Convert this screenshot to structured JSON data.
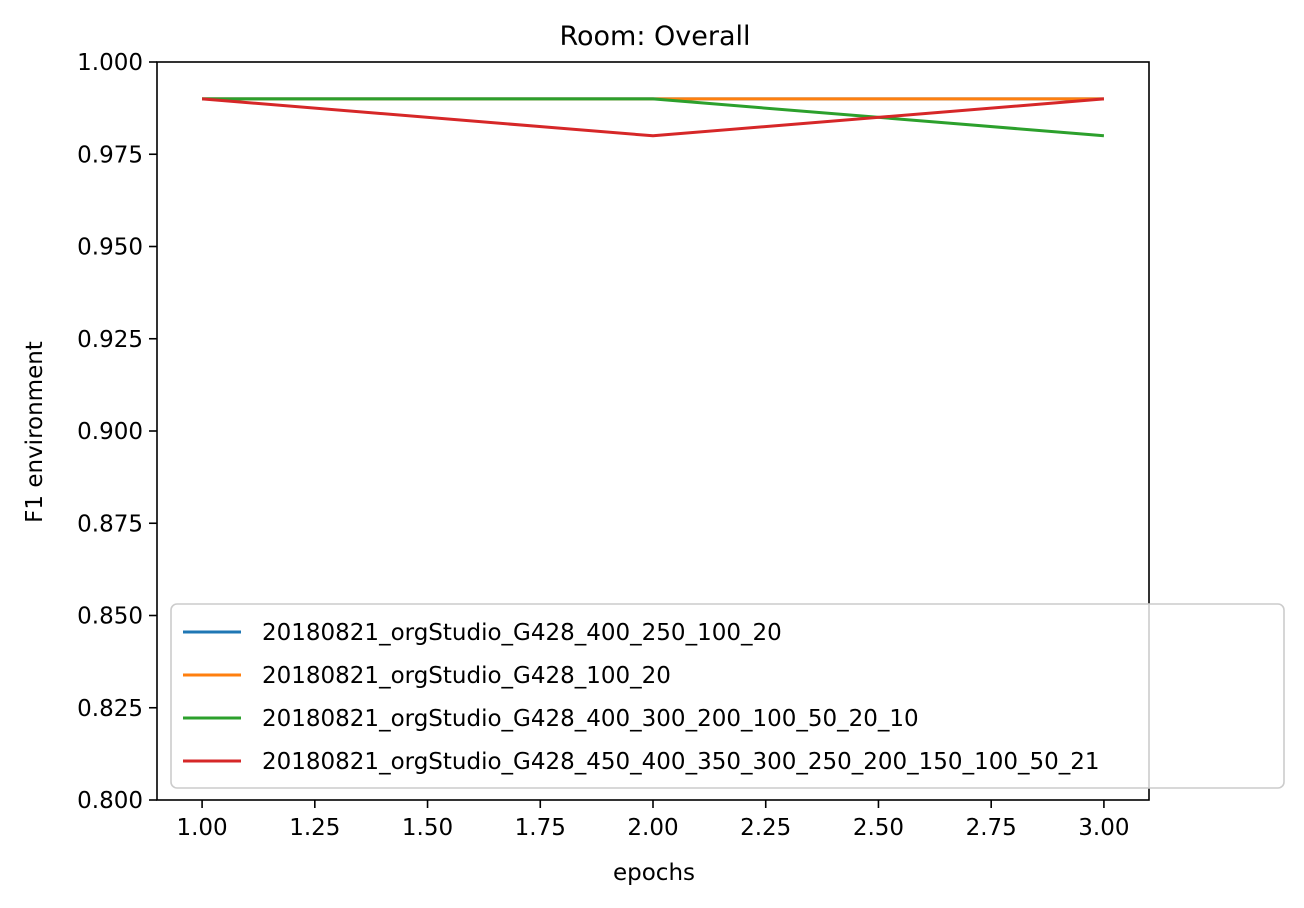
{
  "chart_data": {
    "type": "line",
    "title": "Room: Overall",
    "xlabel": "epochs",
    "ylabel": "F1 environment",
    "xlim": [
      0.9,
      3.1
    ],
    "ylim": [
      0.8,
      1.0
    ],
    "xticks": [
      "1.00",
      "1.25",
      "1.50",
      "1.75",
      "2.00",
      "2.25",
      "2.50",
      "2.75",
      "3.00"
    ],
    "yticks": [
      "0.800",
      "0.825",
      "0.850",
      "0.875",
      "0.900",
      "0.925",
      "0.950",
      "0.975",
      "1.000"
    ],
    "x": [
      1,
      2,
      3
    ],
    "grid": false,
    "legend_position": "lower-right",
    "series": [
      {
        "name": "20180821_orgStudio_G428_400_250_100_20",
        "color": "#1f77b4",
        "values": [
          0.99,
          0.99,
          0.99
        ]
      },
      {
        "name": "20180821_orgStudio_G428_100_20",
        "color": "#ff7f0e",
        "values": [
          0.99,
          0.99,
          0.99
        ]
      },
      {
        "name": "20180821_orgStudio_G428_400_300_200_100_50_20_10",
        "color": "#2ca02c",
        "values": [
          0.99,
          0.99,
          0.98
        ]
      },
      {
        "name": "20180821_orgStudio_G428_450_400_350_300_250_200_150_100_50_21",
        "color": "#d62728",
        "values": [
          0.99,
          0.98,
          0.99
        ]
      }
    ]
  }
}
